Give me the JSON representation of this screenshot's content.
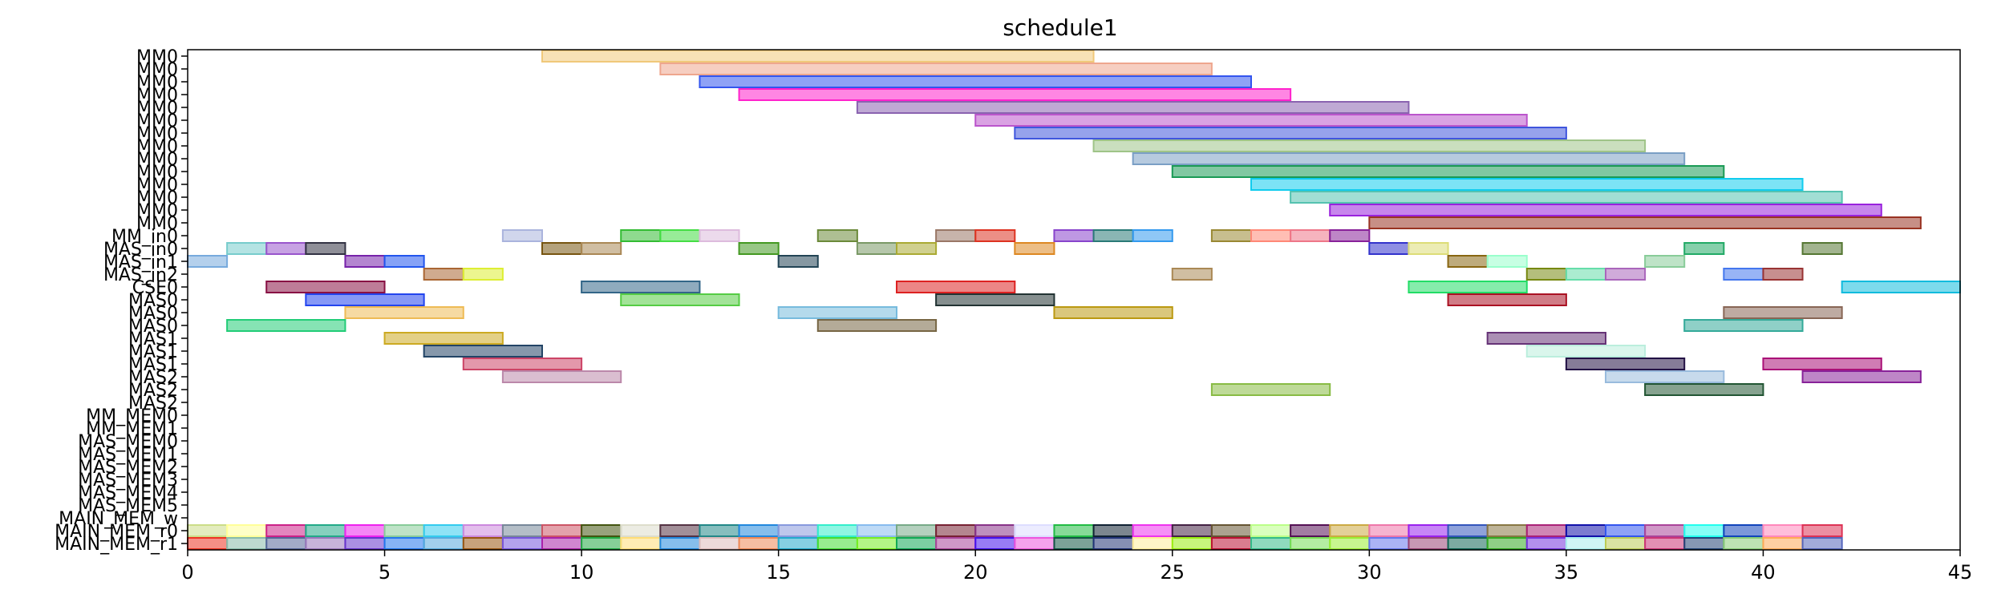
{
  "chart_data": {
    "type": "bar",
    "title": "schedule1",
    "xlabel": "",
    "ylabel": "",
    "xlim": [
      0,
      45
    ],
    "x_ticks": [
      0,
      5,
      10,
      15,
      20,
      25,
      30,
      35,
      40,
      45
    ],
    "grid": false,
    "rows": [
      "MM0",
      "MM0",
      "MM0",
      "MM0",
      "MM0",
      "MM0",
      "MM0",
      "MM0",
      "MM0",
      "MM0",
      "MM0",
      "MM0",
      "MM0",
      "MM0",
      "MM_in0",
      "MAS_in0",
      "MAS_in1",
      "MAS_in2",
      "CSE0",
      "MAS0",
      "MAS0",
      "MAS0",
      "MAS1",
      "MAS1",
      "MAS1",
      "MAS2",
      "MAS2",
      "MAS2",
      "MM_MEM0",
      "MM_MEM1",
      "MAS_MEM0",
      "MAS_MEM1",
      "MAS_MEM2",
      "MAS_MEM3",
      "MAS_MEM4",
      "MAS_MEM5",
      "MAIN_MEM_w",
      "MAIN_MEM_r0",
      "MAIN_MEM_r1"
    ],
    "tasks": [
      {
        "row": 0,
        "start": 9,
        "end": 23,
        "color": "#f0c87a"
      },
      {
        "row": 1,
        "start": 12,
        "end": 26,
        "color": "#eea68e"
      },
      {
        "row": 2,
        "start": 13,
        "end": 27,
        "color": "#3355ee"
      },
      {
        "row": 3,
        "start": 14,
        "end": 28,
        "color": "#ff22cc"
      },
      {
        "row": 4,
        "start": 17,
        "end": 31,
        "color": "#8a63b0"
      },
      {
        "row": 5,
        "start": 20,
        "end": 34,
        "color": "#bb55cc"
      },
      {
        "row": 6,
        "start": 21,
        "end": 35,
        "color": "#3f55dd"
      },
      {
        "row": 7,
        "start": 23,
        "end": 37,
        "color": "#9fc488"
      },
      {
        "row": 8,
        "start": 24,
        "end": 38,
        "color": "#7a9fc5"
      },
      {
        "row": 9,
        "start": 25,
        "end": 39,
        "color": "#1a9a55"
      },
      {
        "row": 10,
        "start": 27,
        "end": 41,
        "color": "#11ccee"
      },
      {
        "row": 11,
        "start": 28,
        "end": 42,
        "color": "#55c2b0"
      },
      {
        "row": 12,
        "start": 29,
        "end": 43,
        "color": "#9922dd"
      },
      {
        "row": 13,
        "start": 30,
        "end": 44,
        "color": "#993322"
      },
      {
        "row": 14,
        "start": 8,
        "end": 9,
        "color": "#aab4dd"
      },
      {
        "row": 14,
        "start": 11,
        "end": 12,
        "color": "#33bb33"
      },
      {
        "row": 14,
        "start": 12,
        "end": 13,
        "color": "#44dd44"
      },
      {
        "row": 14,
        "start": 13,
        "end": 14,
        "color": "#ddbbdd"
      },
      {
        "row": 14,
        "start": 16,
        "end": 17,
        "color": "#6b8a3a"
      },
      {
        "row": 14,
        "start": 19,
        "end": 20,
        "color": "#997766"
      },
      {
        "row": 14,
        "start": 20,
        "end": 21,
        "color": "#dd3322"
      },
      {
        "row": 14,
        "start": 22,
        "end": 23,
        "color": "#8844cc"
      },
      {
        "row": 14,
        "start": 23,
        "end": 24,
        "color": "#2a7a77"
      },
      {
        "row": 14,
        "start": 24,
        "end": 25,
        "color": "#3399ee"
      },
      {
        "row": 14,
        "start": 26,
        "end": 27,
        "color": "#998833"
      },
      {
        "row": 14,
        "start": 27,
        "end": 28,
        "color": "#ff8877"
      },
      {
        "row": 14,
        "start": 28,
        "end": 29,
        "color": "#ee7788"
      },
      {
        "row": 14,
        "start": 29,
        "end": 30,
        "color": "#882299"
      },
      {
        "row": 15,
        "start": 1,
        "end": 2,
        "color": "#77cccc"
      },
      {
        "row": 15,
        "start": 2,
        "end": 3,
        "color": "#9955cc"
      },
      {
        "row": 15,
        "start": 3,
        "end": 4,
        "color": "#333344"
      },
      {
        "row": 15,
        "start": 9,
        "end": 10,
        "color": "#775511"
      },
      {
        "row": 15,
        "start": 10,
        "end": 11,
        "color": "#aa8855"
      },
      {
        "row": 15,
        "start": 14,
        "end": 15,
        "color": "#449922"
      },
      {
        "row": 15,
        "start": 17,
        "end": 18,
        "color": "#7a9966"
      },
      {
        "row": 15,
        "start": 18,
        "end": 19,
        "color": "#aaaa33"
      },
      {
        "row": 15,
        "start": 21,
        "end": 22,
        "color": "#dd8822"
      },
      {
        "row": 15,
        "start": 30,
        "end": 31,
        "color": "#3333cc"
      },
      {
        "row": 15,
        "start": 31,
        "end": 32,
        "color": "#dddd77"
      },
      {
        "row": 15,
        "start": 38,
        "end": 39,
        "color": "#22aa66"
      },
      {
        "row": 15,
        "start": 41,
        "end": 42,
        "color": "#557733"
      },
      {
        "row": 16,
        "start": 0,
        "end": 1,
        "color": "#77aadd"
      },
      {
        "row": 16,
        "start": 4,
        "end": 5,
        "color": "#7722aa"
      },
      {
        "row": 16,
        "start": 5,
        "end": 6,
        "color": "#2255ee"
      },
      {
        "row": 16,
        "start": 15,
        "end": 16,
        "color": "#224455"
      },
      {
        "row": 16,
        "start": 32,
        "end": 33,
        "color": "#886611"
      },
      {
        "row": 16,
        "start": 33,
        "end": 34,
        "color": "#99ffcc"
      },
      {
        "row": 16,
        "start": 37,
        "end": 38,
        "color": "#88cc99"
      },
      {
        "row": 17,
        "start": 6,
        "end": 7,
        "color": "#aa6633"
      },
      {
        "row": 17,
        "start": 7,
        "end": 8,
        "color": "#ddee33"
      },
      {
        "row": 17,
        "start": 25,
        "end": 26,
        "color": "#aa8855"
      },
      {
        "row": 17,
        "start": 34,
        "end": 35,
        "color": "#778811"
      },
      {
        "row": 17,
        "start": 35,
        "end": 36,
        "color": "#66ddaa"
      },
      {
        "row": 17,
        "start": 36,
        "end": 37,
        "color": "#aa66bb"
      },
      {
        "row": 17,
        "start": 39,
        "end": 40,
        "color": "#4477ee"
      },
      {
        "row": 17,
        "start": 40,
        "end": 41,
        "color": "#993333"
      },
      {
        "row": 18,
        "start": 2,
        "end": 5,
        "color": "#881144"
      },
      {
        "row": 18,
        "start": 10,
        "end": 13,
        "color": "#336688"
      },
      {
        "row": 18,
        "start": 18,
        "end": 21,
        "color": "#dd2222"
      },
      {
        "row": 18,
        "start": 31,
        "end": 34,
        "color": "#22dd66"
      },
      {
        "row": 18,
        "start": 42,
        "end": 45,
        "color": "#11bbdd"
      },
      {
        "row": 19,
        "start": 3,
        "end": 6,
        "color": "#2244ee"
      },
      {
        "row": 19,
        "start": 11,
        "end": 14,
        "color": "#55cc44"
      },
      {
        "row": 19,
        "start": 19,
        "end": 22,
        "color": "#223333"
      },
      {
        "row": 19,
        "start": 32,
        "end": 35,
        "color": "#aa1122"
      },
      {
        "row": 20,
        "start": 4,
        "end": 7,
        "color": "#eebb55"
      },
      {
        "row": 20,
        "start": 15,
        "end": 18,
        "color": "#77bbdd"
      },
      {
        "row": 20,
        "start": 22,
        "end": 25,
        "color": "#bb9911"
      },
      {
        "row": 20,
        "start": 39,
        "end": 42,
        "color": "#886655"
      },
      {
        "row": 21,
        "start": 1,
        "end": 4,
        "color": "#22cc77"
      },
      {
        "row": 21,
        "start": 16,
        "end": 19,
        "color": "#776644"
      },
      {
        "row": 21,
        "start": 38,
        "end": 41,
        "color": "#33aa99"
      },
      {
        "row": 22,
        "start": 5,
        "end": 8,
        "color": "#ccaa22"
      },
      {
        "row": 22,
        "start": 33,
        "end": 36,
        "color": "#663377"
      },
      {
        "row": 23,
        "start": 6,
        "end": 9,
        "color": "#224466"
      },
      {
        "row": 23,
        "start": 34,
        "end": 37,
        "color": "#bbeedd"
      },
      {
        "row": 24,
        "start": 7,
        "end": 10,
        "color": "#cc4466"
      },
      {
        "row": 24,
        "start": 35,
        "end": 38,
        "color": "#221144"
      },
      {
        "row": 24,
        "start": 40,
        "end": 43,
        "color": "#aa1177"
      },
      {
        "row": 25,
        "start": 8,
        "end": 11,
        "color": "#bb88aa"
      },
      {
        "row": 25,
        "start": 36,
        "end": 39,
        "color": "#99bbdd"
      },
      {
        "row": 25,
        "start": 41,
        "end": 44,
        "color": "#882299"
      },
      {
        "row": 26,
        "start": 26,
        "end": 29,
        "color": "#88bb44"
      },
      {
        "row": 26,
        "start": 37,
        "end": 40,
        "color": "#225533"
      }
    ],
    "mem_rows": {
      "MAIN_MEM_r0": {
        "row": 37,
        "start": 0,
        "colors": [
          "#ccdd88",
          "#ffff99",
          "#cc2288",
          "#22aa88",
          "#ee22ee",
          "#88cc99",
          "#33ccee",
          "#cc88dd",
          "#778899",
          "#cc5566",
          "#445511",
          "#ddddcc",
          "#553344",
          "#228888",
          "#2288dd",
          "#8899dd",
          "#33eecc",
          "#88bbee",
          "#77aa88",
          "#772233",
          "#883388",
          "#ddddff",
          "#22bb44",
          "#112233",
          "#ee33ee",
          "#442244",
          "#665533",
          "#bbff88",
          "#551155",
          "#ccaa44",
          "#ee77aa",
          "#9922ee",
          "#3355bb",
          "#887744",
          "#aa2277",
          "#1111aa",
          "#3355ee",
          "#aa4499",
          "#22ffee",
          "#1144bb",
          "#ff88bb",
          "#dd3355"
        ]
      },
      "MAIN_MEM_r1": {
        "row": 38,
        "start": 0,
        "colors": [
          "#ee3322",
          "#88bbaa",
          "#556699",
          "#9977bb",
          "#6633cc",
          "#2277ee",
          "#55aadd",
          "#995511",
          "#7755dd",
          "#aa22aa",
          "#22aa44",
          "#ffdd77",
          "#2288dd",
          "#ddbbbb",
          "#ee8855",
          "#22aacc",
          "#44dd33",
          "#77ee22",
          "#11aa55",
          "#aa4499",
          "#4411ee",
          "#ee55dd",
          "#115544",
          "#223377",
          "#ffee99",
          "#99ee11",
          "#bb1133",
          "#33bb88",
          "#77dd55",
          "#99ee33",
          "#6677ee",
          "#994477",
          "#116655",
          "#33aa22",
          "#7733dd",
          "#aaeeee",
          "#bbcc55",
          "#cc3377",
          "#224477",
          "#88cc77",
          "#ffaa55",
          "#5566bb"
        ]
      }
    }
  }
}
